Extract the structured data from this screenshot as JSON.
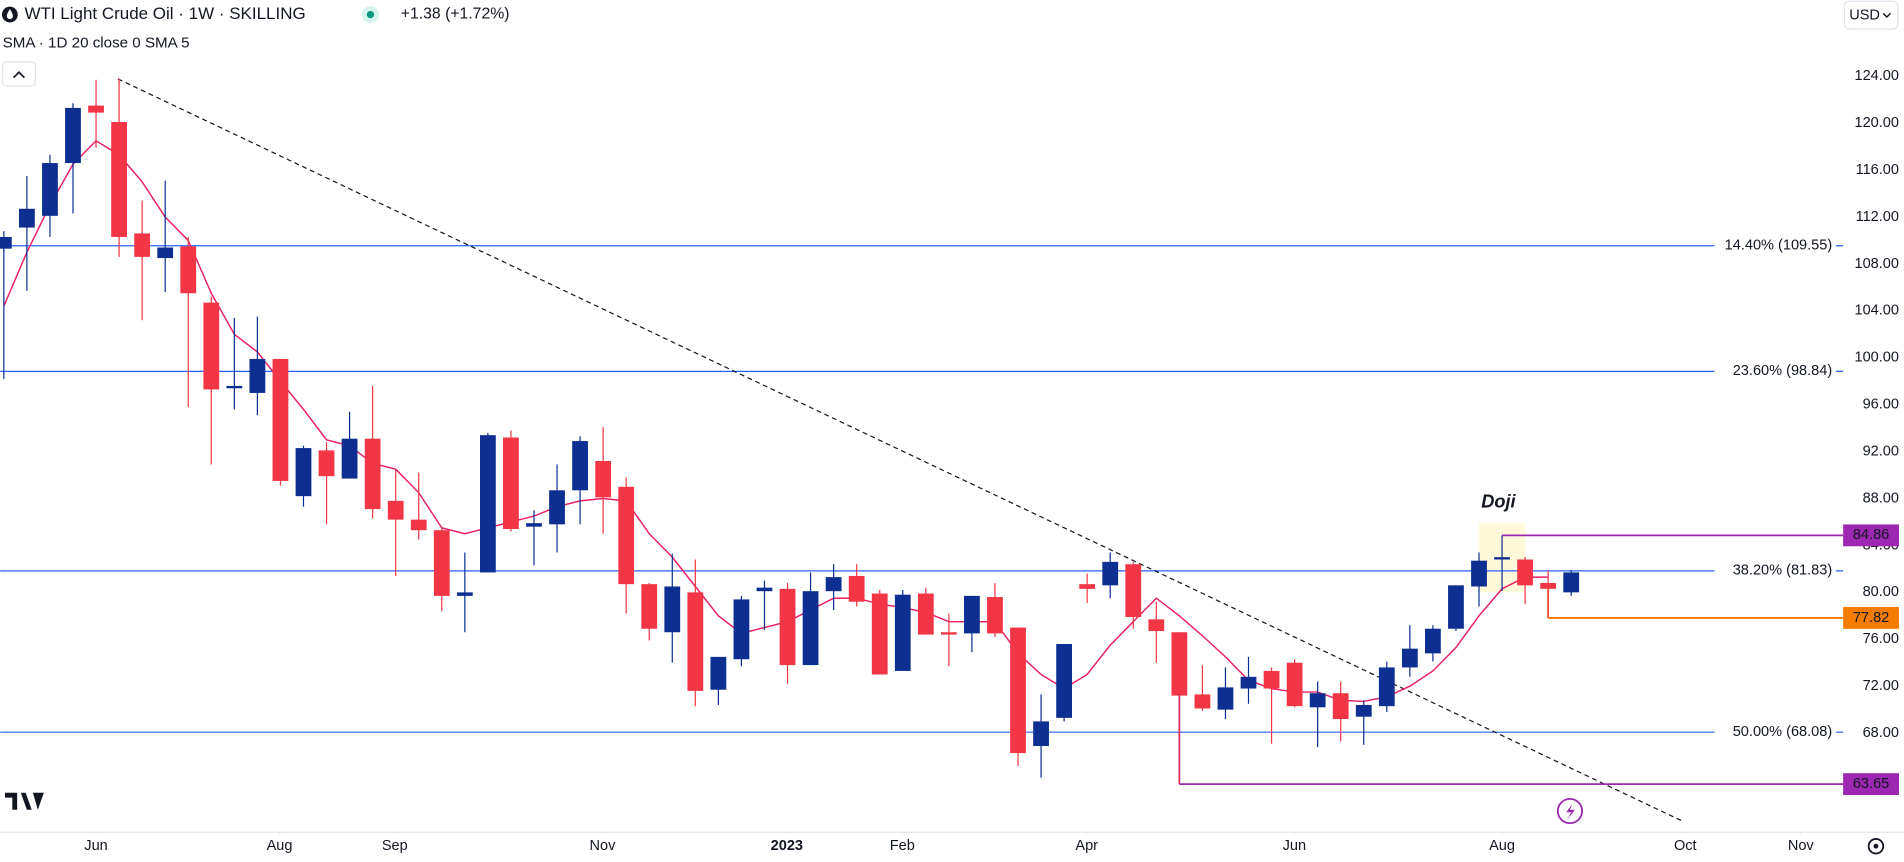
{
  "chart_data": {
    "type": "candlestick",
    "title": "WTI Light Crude Oil · 1W · SKILLING",
    "change": "+1.38 (+1.72%)",
    "change_color": "#089981",
    "indicator": "SMA · 1D 20 close 0 SMA 5",
    "currency": "USD",
    "annotation": "Doji",
    "up_color": "#0c2f91",
    "down_color": "#f23645",
    "sma_color": "#e91e63",
    "level_color": "#2962ff",
    "categories": [
      null,
      null,
      null,
      null,
      null,
      null,
      null,
      null,
      null,
      null,
      null,
      null,
      null,
      null,
      null,
      null,
      null,
      null,
      null,
      null,
      null,
      null,
      null,
      null,
      null,
      null,
      null,
      null,
      null,
      null,
      null,
      null,
      null,
      null,
      null,
      null,
      null,
      null,
      null,
      null,
      null,
      null,
      null,
      null,
      null,
      null,
      null,
      null,
      null,
      null,
      null,
      null,
      null,
      null,
      null,
      null,
      null,
      null,
      null,
      null,
      null,
      null,
      null,
      null,
      null,
      null,
      null,
      null,
      null
    ],
    "open": [
      109.3,
      111.1,
      112.1,
      116.6,
      121.5,
      120.1,
      110.6,
      108.5,
      109.5,
      104.7,
      97.4,
      97.0,
      99.9,
      88.2,
      92.1,
      89.7,
      93.1,
      87.8,
      86.2,
      85.3,
      79.7,
      81.7,
      93.2,
      85.6,
      85.8,
      88.7,
      91.2,
      89.0,
      80.7,
      76.6,
      80.0,
      71.7,
      74.3,
      80.1,
      80.3,
      73.8,
      80.1,
      81.4,
      79.9,
      73.3,
      79.9,
      76.6,
      76.5,
      79.6,
      77.0,
      66.9,
      69.3,
      80.7,
      80.6,
      82.4,
      77.7,
      76.6,
      71.3,
      70.0,
      71.8,
      73.3,
      74.0,
      70.2,
      71.4,
      69.4,
      70.3,
      73.6,
      74.8,
      76.9,
      80.5,
      82.8,
      82.8,
      80.8,
      80.0
    ],
    "high": [
      110.8,
      115.5,
      117.3,
      121.7,
      123.7,
      123.8,
      113.4,
      115.1,
      110.3,
      105.2,
      103.4,
      103.5,
      99.9,
      92.5,
      92.8,
      95.4,
      97.6,
      90.4,
      90.2,
      85.5,
      83.4,
      93.6,
      93.8,
      87.0,
      90.9,
      93.3,
      94.1,
      89.8,
      80.8,
      83.3,
      82.8,
      74.5,
      79.7,
      81.0,
      80.8,
      81.7,
      82.4,
      82.4,
      80.2,
      80.2,
      80.4,
      78.2,
      79.7,
      80.8,
      77.0,
      71.3,
      75.6,
      81.6,
      83.4,
      82.6,
      79.2,
      76.6,
      73.8,
      73.6,
      74.5,
      73.6,
      74.3,
      72.4,
      72.4,
      70.8,
      74.1,
      77.2,
      77.2,
      80.6,
      83.4,
      84.86,
      83.0,
      81.9,
      81.9
    ],
    "low": [
      98.2,
      105.7,
      110.3,
      112.3,
      117.9,
      108.6,
      103.2,
      105.6,
      95.8,
      90.9,
      95.6,
      95.1,
      89.1,
      87.3,
      85.8,
      89.8,
      86.3,
      81.4,
      84.5,
      78.4,
      76.6,
      81.7,
      85.2,
      82.3,
      83.4,
      85.8,
      85.0,
      78.2,
      75.9,
      74.0,
      70.3,
      70.4,
      73.7,
      76.8,
      72.2,
      73.8,
      78.5,
      78.8,
      73.0,
      73.3,
      76.4,
      73.7,
      74.9,
      76.2,
      65.2,
      64.2,
      69.0,
      79.1,
      79.5,
      76.9,
      74.0,
      63.65,
      69.9,
      69.2,
      70.5,
      67.1,
      70.2,
      66.8,
      67.3,
      67.0,
      69.8,
      72.8,
      74.1,
      76.7,
      78.8,
      80.1,
      79.0,
      77.82,
      79.7
    ],
    "close": [
      110.3,
      112.7,
      116.6,
      121.3,
      120.9,
      110.3,
      108.6,
      109.4,
      105.5,
      97.3,
      97.6,
      99.9,
      89.5,
      92.3,
      89.9,
      93.1,
      87.1,
      86.2,
      85.3,
      79.7,
      80.0,
      93.4,
      85.4,
      85.9,
      88.7,
      92.9,
      88.1,
      80.7,
      76.9,
      80.5,
      71.6,
      74.5,
      79.4,
      80.4,
      73.8,
      80.1,
      81.3,
      79.2,
      73.0,
      79.8,
      76.4,
      76.4,
      79.7,
      76.5,
      66.3,
      69.0,
      75.6,
      80.3,
      82.6,
      77.9,
      76.7,
      71.2,
      70.1,
      71.9,
      72.8,
      71.8,
      70.3,
      71.4,
      69.2,
      70.4,
      73.6,
      75.2,
      76.9,
      80.6,
      82.7,
      83.0,
      80.6,
      80.3,
      81.7
    ],
    "sma": [
      104.4,
      109,
      113,
      116.5,
      118.5,
      117.3,
      115,
      112,
      110,
      105.5,
      102,
      100.5,
      98,
      95.6,
      93,
      92.5,
      91,
      90.5,
      88.5,
      85.5,
      85,
      85.5,
      86,
      86.5,
      87.3,
      87.8,
      88,
      87.8,
      85,
      83,
      80.5,
      78,
      76.5,
      77,
      77.5,
      78.5,
      79.5,
      79.5,
      79,
      78.7,
      78.3,
      77.5,
      77.5,
      77.5,
      74.8,
      73,
      71.8,
      73,
      75.5,
      77.5,
      79.5,
      78,
      76.3,
      74.5,
      72.5,
      71.8,
      71.5,
      71.5,
      70.8,
      70.7,
      71.1,
      72,
      73.3,
      75.3,
      78,
      80.3,
      81.3,
      81.3,
      null
    ],
    "levels": [
      {
        "value": 109.55,
        "label": "14.40% (109.55)"
      },
      {
        "value": 98.84,
        "label": "23.60% (98.84)"
      },
      {
        "value": 81.83,
        "label": "38.20% (81.83)"
      },
      {
        "value": 68.08,
        "label": "50.00% (68.08)"
      }
    ],
    "price_lines": [
      {
        "value": 84.86,
        "color": "#9c27b0"
      },
      {
        "value": 77.82,
        "color": "#f57c00"
      },
      {
        "value": 63.65,
        "color": "#9c27b0"
      }
    ],
    "xlim": [
      -0.16,
      78.85
    ],
    "xticks": [
      {
        "value": 4.0,
        "label": "Jun"
      },
      {
        "value": 11.96,
        "label": "Aug"
      },
      {
        "value": 16.96,
        "label": "Sep"
      },
      {
        "value": 25.97,
        "label": "Nov"
      },
      {
        "value": 33.97,
        "label": "2023"
      },
      {
        "value": 38.98,
        "label": "Feb"
      },
      {
        "value": 46.98,
        "label": "Apr"
      },
      {
        "value": 55.99,
        "label": "Jun"
      },
      {
        "value": 65.0,
        "label": "Aug"
      },
      {
        "value": 72.95,
        "label": "Oct"
      },
      {
        "value": 77.96,
        "label": "Nov"
      }
    ],
    "ylim": [
      59.6,
      130.5
    ],
    "yticks": [
      {
        "value": 68,
        "label": "68.00"
      },
      {
        "value": 72,
        "label": "72.00"
      },
      {
        "value": 76,
        "label": "76.00"
      },
      {
        "value": 80,
        "label": "80.00"
      },
      {
        "value": 84,
        "label": "84.00"
      },
      {
        "value": 88,
        "label": "88.00"
      },
      {
        "value": 92,
        "label": "92.00"
      },
      {
        "value": 96,
        "label": "96.00"
      },
      {
        "value": 100,
        "label": "100.00"
      },
      {
        "value": 104,
        "label": "104.00"
      },
      {
        "value": 108,
        "label": "108.00"
      },
      {
        "value": 112,
        "label": "112.00"
      },
      {
        "value": 116,
        "label": "116.00"
      },
      {
        "value": 120,
        "label": "120.00"
      },
      {
        "value": 124,
        "label": "124.00"
      }
    ]
  }
}
